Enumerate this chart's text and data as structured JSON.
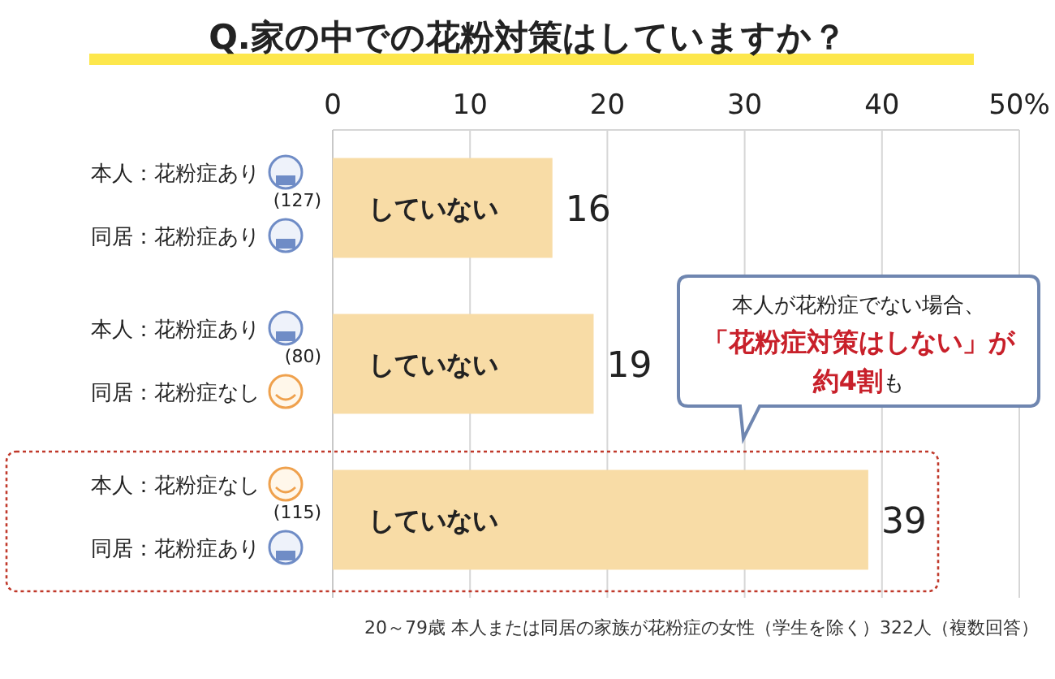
{
  "chart_data": {
    "type": "bar",
    "orientation": "horizontal",
    "title": "Q.家の中での花粉対策はしていますか？",
    "categories": [
      "本人：花粉症あり同居：花粉症あり",
      "本人：花粉症あり同居：花粉症なし",
      "本人：花粉症なし同居：花粉症あり"
    ],
    "series": [
      {
        "name": "していない",
        "color": "#f8dca6",
        "values": [
          16,
          19,
          39
        ]
      }
    ],
    "xlim": [
      0,
      50
    ],
    "xticks": [
      0,
      10,
      20,
      30,
      40,
      {
        "value": 50,
        "label": "50%"
      }
    ],
    "grid": "x",
    "data_labels": true,
    "annotations": [
      "本人が花粉症でない場合、**「花粉症対策はしない」が約4割**も",
      "20～79歳 本人または同居の家族が花粉症の女性（学生を除く）322人（複数回答）",
      "(127)",
      "(80)",
      "(115)"
    ]
  }
}
